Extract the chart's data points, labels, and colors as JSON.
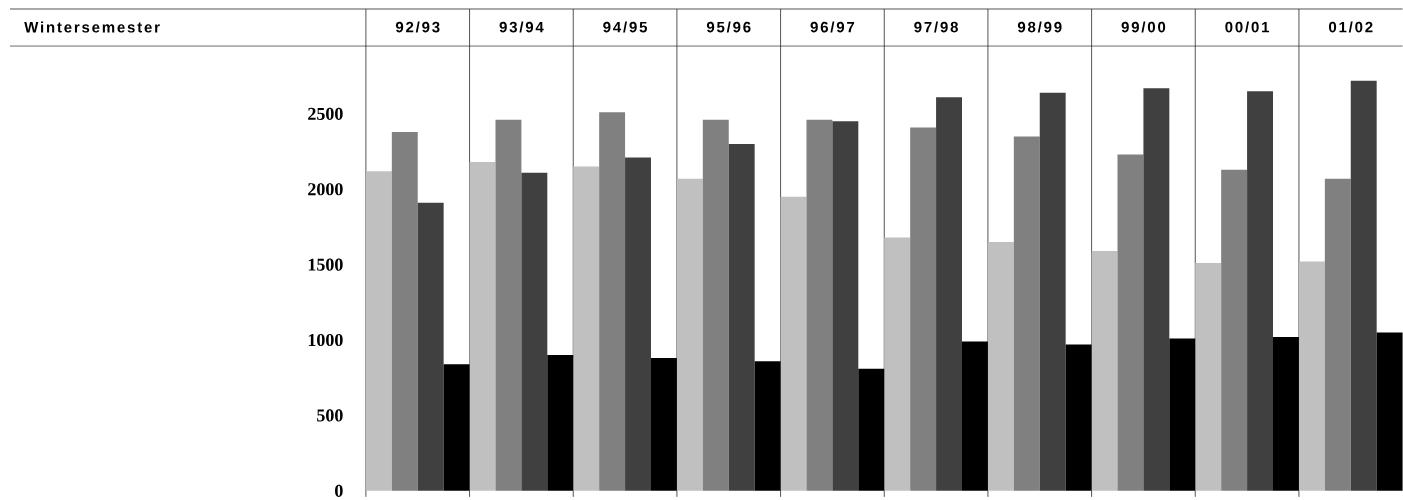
{
  "chart_data": {
    "type": "bar",
    "annotations": [
      "Wintersemester"
    ],
    "categories": [
      "92/93",
      "93/94",
      "94/95",
      "95/96",
      "96/97",
      "97/98",
      "98/99",
      "99/00",
      "00/01",
      "01/02"
    ],
    "series": [
      {
        "color": "#c0c0c0",
        "values": [
          2120,
          2180,
          2150,
          2070,
          1950,
          1680,
          1650,
          1590,
          1510,
          1520
        ]
      },
      {
        "color": "#808080",
        "values": [
          2380,
          2460,
          2510,
          2460,
          2460,
          2410,
          2350,
          2230,
          2130,
          2070
        ]
      },
      {
        "color": "#404040",
        "values": [
          1910,
          2110,
          2210,
          2300,
          2450,
          2610,
          2640,
          2670,
          2650,
          2720
        ]
      },
      {
        "color": "#000000",
        "values": [
          840,
          900,
          880,
          860,
          810,
          990,
          970,
          1010,
          1020,
          1050
        ]
      }
    ],
    "ylim": [
      -40,
      2950
    ],
    "yticks": [
      0,
      500,
      1000,
      1500,
      2000,
      2500
    ]
  }
}
